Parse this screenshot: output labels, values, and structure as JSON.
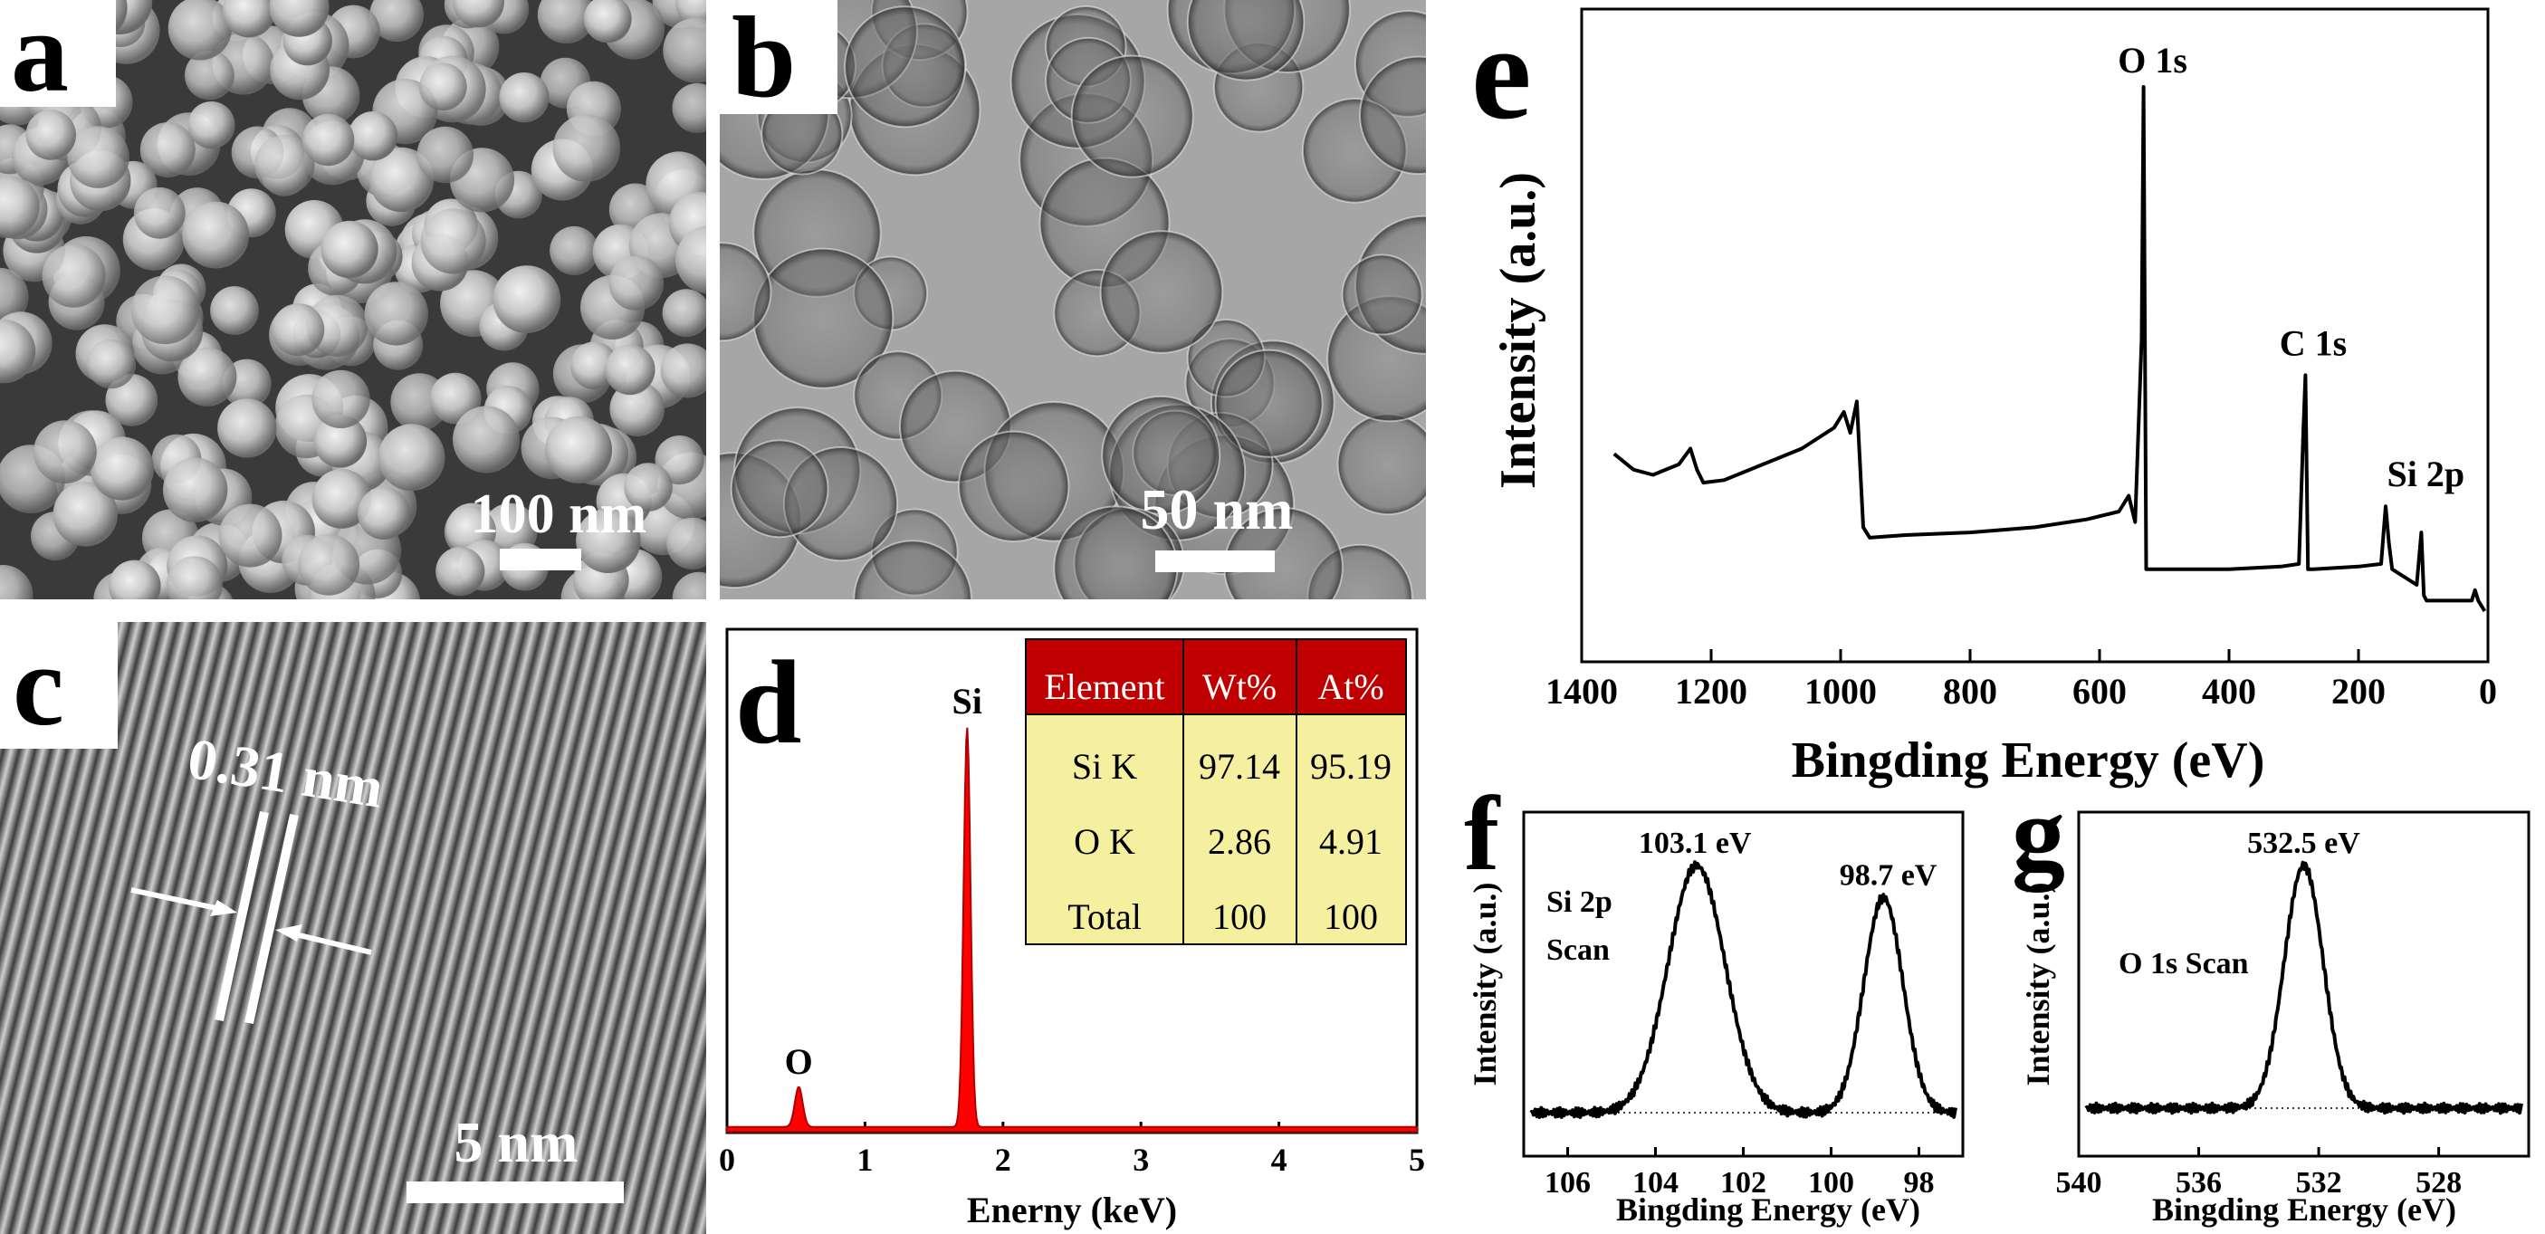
{
  "panels": {
    "a": {
      "letter": "a",
      "scale_label": "100 nm"
    },
    "b": {
      "letter": "b",
      "scale_label": "50 nm"
    },
    "c": {
      "letter": "c",
      "scale_label": "5 nm",
      "spacing_label": "0.31 nm"
    },
    "d": {
      "letter": "d"
    },
    "e": {
      "letter": "e"
    },
    "f": {
      "letter": "f"
    },
    "g": {
      "letter": "g"
    }
  },
  "colors": {
    "eds_fill": "#ff0000",
    "table_header": "#c00000",
    "table_body": "#f5f0a0",
    "line": "#000000"
  },
  "chart_data": [
    {
      "id": "d",
      "type": "area",
      "xlabel": "Enerny (keV)",
      "ylabel": "",
      "xlim": [
        0,
        5
      ],
      "xticks": [
        0,
        1,
        2,
        3,
        4,
        5
      ],
      "peaks": [
        {
          "label": "O",
          "x": 0.52,
          "height": 0.1,
          "width": 0.04
        },
        {
          "label": "Si",
          "x": 1.74,
          "height": 1.0,
          "width": 0.035
        }
      ],
      "table": {
        "headers": [
          "Element",
          "Wt%",
          "At%"
        ],
        "rows": [
          [
            "Si K",
            "97.14",
            "95.19"
          ],
          [
            "O K",
            "2.86",
            "4.91"
          ],
          [
            "Total",
            "100",
            "100"
          ]
        ]
      }
    },
    {
      "id": "e",
      "type": "line",
      "xlabel": "Bingding Energy (eV)",
      "ylabel": "Intensity (a.u.)",
      "xlim": [
        1400,
        0
      ],
      "xticks": [
        1400,
        1200,
        1000,
        800,
        600,
        400,
        200,
        0
      ],
      "x": [
        1350,
        1320,
        1290,
        1250,
        1232,
        1222,
        1212,
        1180,
        1120,
        1060,
        1010,
        995,
        985,
        975,
        965,
        955,
        900,
        800,
        700,
        620,
        570,
        555,
        545,
        535,
        532,
        528,
        520,
        480,
        400,
        320,
        292,
        285,
        282,
        278,
        270,
        200,
        165,
        158,
        153,
        148,
        110,
        103,
        99,
        95,
        60,
        25,
        20,
        15,
        5
      ],
      "y": [
        0.3,
        0.27,
        0.26,
        0.28,
        0.31,
        0.27,
        0.245,
        0.25,
        0.28,
        0.31,
        0.35,
        0.38,
        0.34,
        0.4,
        0.16,
        0.14,
        0.145,
        0.15,
        0.16,
        0.175,
        0.19,
        0.22,
        0.17,
        0.52,
        1.0,
        0.08,
        0.08,
        0.08,
        0.08,
        0.085,
        0.09,
        0.35,
        0.45,
        0.08,
        0.08,
        0.085,
        0.09,
        0.2,
        0.13,
        0.08,
        0.05,
        0.15,
        0.03,
        0.02,
        0.02,
        0.02,
        0.04,
        0.02,
        0.0
      ],
      "annotations": [
        {
          "label": "O 1s",
          "x": 532
        },
        {
          "label": "C 1s",
          "x": 284
        },
        {
          "label": "Si 2p",
          "x": 110
        }
      ]
    },
    {
      "id": "f",
      "type": "line",
      "xlabel": "Bingding Energy (eV)",
      "ylabel": "Intensity (a.u.)",
      "xlim": [
        107,
        97
      ],
      "xticks": [
        106,
        104,
        102,
        100,
        98
      ],
      "inset_label_1": "Si 2p",
      "inset_label_2": "Scan",
      "peaks": [
        {
          "label": "103.1 eV",
          "x": 103.1,
          "height": 1.0,
          "width": 0.95
        },
        {
          "label": "98.7 eV",
          "x": 98.7,
          "height": 0.87,
          "width": 0.65
        }
      ]
    },
    {
      "id": "g",
      "type": "line",
      "xlabel": "Bingding Energy (eV)",
      "ylabel": "Intensity (a.u.)",
      "xlim": [
        540,
        525
      ],
      "xticks": [
        540,
        536,
        532,
        528
      ],
      "inset_label_1": "O 1s Scan",
      "peaks": [
        {
          "label": "532.5 eV",
          "x": 532.5,
          "height": 1.0,
          "width": 0.95
        }
      ]
    }
  ]
}
